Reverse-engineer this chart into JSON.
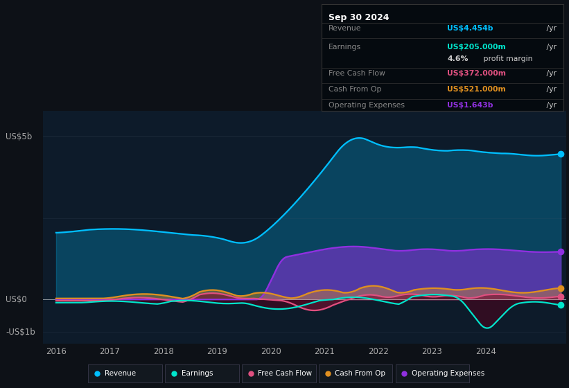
{
  "background_color": "#0d1117",
  "plot_bg_color": "#0d1b2a",
  "colors": {
    "revenue": "#00bfff",
    "earnings": "#00e5cc",
    "free_cash_flow": "#e05080",
    "cash_from_op": "#e09020",
    "operating_expenses": "#9030e0"
  },
  "xlim": [
    2015.75,
    2025.5
  ],
  "ylim": [
    -1.35,
    5.8
  ],
  "x_ticks": [
    2016,
    2017,
    2018,
    2019,
    2020,
    2021,
    2022,
    2023,
    2024
  ],
  "y_labels": [
    {
      "val": 5.0,
      "text": "US$5b"
    },
    {
      "val": 0.0,
      "text": "US$0"
    },
    {
      "val": -1.0,
      "text": "-US$1b"
    }
  ],
  "info_box": {
    "date": "Sep 30 2024",
    "rows": [
      {
        "label": "Revenue",
        "value": "US$4.454b",
        "suffix": " /yr",
        "color": "#00bfff"
      },
      {
        "label": "Earnings",
        "value": "US$205.000m",
        "suffix": " /yr",
        "color": "#00e5cc"
      },
      {
        "label": "",
        "value": "4.6%",
        "suffix": " profit margin",
        "color": "#ffffff"
      },
      {
        "label": "Free Cash Flow",
        "value": "US$372.000m",
        "suffix": " /yr",
        "color": "#e05080"
      },
      {
        "label": "Cash From Op",
        "value": "US$521.000m",
        "suffix": " /yr",
        "color": "#e09020"
      },
      {
        "label": "Operating Expenses",
        "value": "US$1.643b",
        "suffix": " /yr",
        "color": "#9030e0"
      }
    ]
  },
  "legend_items": [
    {
      "label": "Revenue",
      "color": "#00bfff"
    },
    {
      "label": "Earnings",
      "color": "#00e5cc"
    },
    {
      "label": "Free Cash Flow",
      "color": "#e05080"
    },
    {
      "label": "Cash From Op",
      "color": "#e09020"
    },
    {
      "label": "Operating Expenses",
      "color": "#9030e0"
    }
  ]
}
